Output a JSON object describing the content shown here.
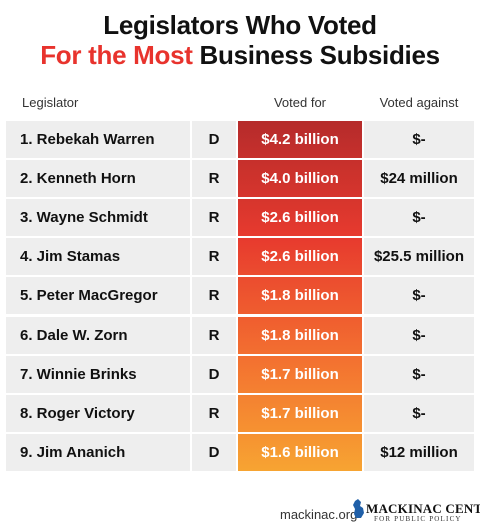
{
  "title_line1": "Legislators Who Voted",
  "title_line2_red": "For the Most",
  "title_line2_black": " Business Subsidies",
  "headers": {
    "legislator": "Legislator",
    "voted_for": "Voted for",
    "voted_against": "Voted against"
  },
  "colors": {
    "title_red": "#e8332d",
    "for_gradient": [
      "#b52b2b",
      "#e73a2e",
      "#f36f30",
      "#f7a432"
    ]
  },
  "chart_data": {
    "type": "table",
    "columns": [
      "Legislator",
      "",
      "Voted for",
      "Voted against"
    ],
    "rows": [
      {
        "rank": 1,
        "name": "1. Rebekah Warren",
        "party": "D",
        "voted_for": "$4.2 billion",
        "voted_for_billions": 4.2,
        "voted_against": "$-"
      },
      {
        "rank": 2,
        "name": "2. Kenneth Horn",
        "party": "R",
        "voted_for": "$4.0 billion",
        "voted_for_billions": 4.0,
        "voted_against": "$24 million"
      },
      {
        "rank": 3,
        "name": "3. Wayne Schmidt",
        "party": "R",
        "voted_for": "$2.6 billion",
        "voted_for_billions": 2.6,
        "voted_against": "$-"
      },
      {
        "rank": 4,
        "name": "4. Jim Stamas",
        "party": "R",
        "voted_for": "$2.6 billion",
        "voted_for_billions": 2.6,
        "voted_against": "$25.5 million"
      },
      {
        "rank": 5,
        "name": "5. Peter MacGregor",
        "party": "R",
        "voted_for": "$1.8 billion",
        "voted_for_billions": 1.8,
        "voted_against": "$-"
      },
      {
        "rank": 6,
        "name": "6. Dale W. Zorn",
        "party": "R",
        "voted_for": "$1.8 billion",
        "voted_for_billions": 1.8,
        "voted_against": "$-"
      },
      {
        "rank": 7,
        "name": "7. Winnie Brinks",
        "party": "D",
        "voted_for": "$1.7 billion",
        "voted_for_billions": 1.7,
        "voted_against": "$-"
      },
      {
        "rank": 8,
        "name": "8. Roger Victory",
        "party": "R",
        "voted_for": "$1.7 billion",
        "voted_for_billions": 1.7,
        "voted_against": "$-"
      },
      {
        "rank": 9,
        "name": "9. Jim Ananich",
        "party": "D",
        "voted_for": "$1.6 billion",
        "voted_for_billions": 1.6,
        "voted_against": "$12 million"
      }
    ]
  },
  "footer": {
    "url": "mackinac.org",
    "logo_name": "MACKINAC CENTER",
    "logo_sub": "FOR PUBLIC POLICY",
    "logo_icon": "michigan-map-icon"
  }
}
